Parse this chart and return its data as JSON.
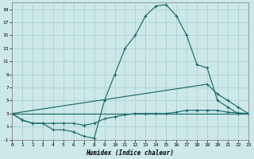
{
  "xlabel": "Humidex (Indice chaleur)",
  "bg_color": "#cde8e8",
  "grid_color": "#b0d4d4",
  "line_color": "#1a6b6b",
  "xlim": [
    0,
    23
  ],
  "ylim": [
    -1,
    20
  ],
  "xtick_vals": [
    0,
    1,
    2,
    3,
    4,
    5,
    6,
    7,
    8,
    9,
    10,
    11,
    12,
    13,
    14,
    15,
    16,
    17,
    18,
    19,
    20,
    21,
    22,
    23
  ],
  "ytick_vals": [
    -1,
    1,
    3,
    5,
    7,
    9,
    11,
    13,
    15,
    17,
    19
  ],
  "curves": [
    {
      "x": [
        0,
        1,
        2,
        3,
        4,
        5,
        6,
        7,
        8,
        9,
        10,
        11,
        12,
        13,
        14,
        15,
        16,
        17,
        18,
        19,
        20,
        21,
        22,
        23
      ],
      "y": [
        3,
        2,
        1.5,
        1.5,
        0.5,
        0.5,
        0.2,
        -0.5,
        -0.8,
        5,
        9,
        13,
        15,
        18,
        19.5,
        19.7,
        18,
        15,
        10.5,
        10,
        5,
        4,
        3,
        3
      ]
    },
    {
      "x": [
        0,
        1,
        2,
        3,
        4,
        5,
        6,
        7,
        8,
        9,
        10,
        11,
        12,
        13,
        14,
        15,
        16,
        17,
        18,
        19,
        20,
        21,
        22,
        23
      ],
      "y": [
        3,
        2,
        1.5,
        1.5,
        1.5,
        1.5,
        1.5,
        1.2,
        1.5,
        2.2,
        2.5,
        2.8,
        3,
        3,
        3,
        3,
        3.2,
        3.5,
        3.5,
        3.5,
        3.5,
        3.2,
        3.1,
        3
      ]
    },
    {
      "x": [
        0,
        19,
        20,
        21,
        22,
        23
      ],
      "y": [
        3,
        7.5,
        6,
        5,
        4,
        3
      ]
    },
    {
      "x": [
        0,
        23
      ],
      "y": [
        3,
        3
      ]
    }
  ]
}
